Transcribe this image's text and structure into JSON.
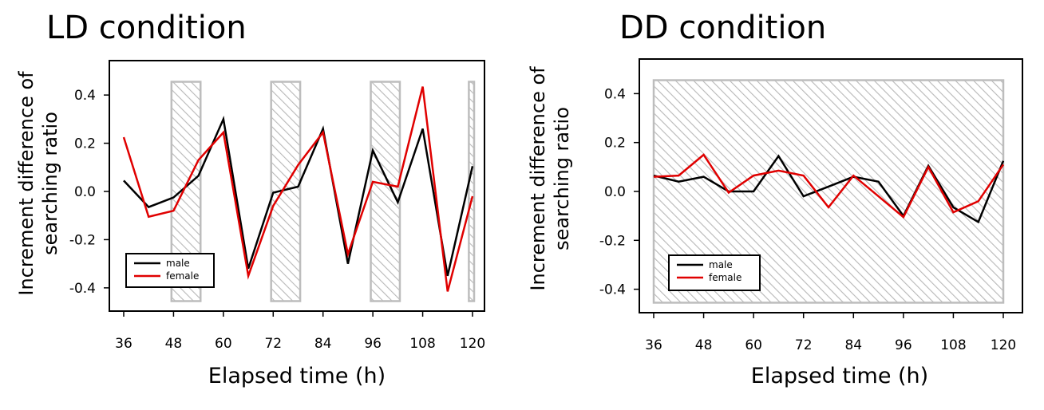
{
  "chart_data": [
    {
      "type": "line",
      "title": "LD condition",
      "xlabel": "Elapsed time (h)",
      "ylabel_lines": [
        "Increment difference of",
        "searching  ratio"
      ],
      "xlim": [
        36,
        120
      ],
      "ylim": [
        -0.46,
        0.46
      ],
      "x_ticks": [
        36,
        48,
        60,
        72,
        84,
        96,
        108,
        120
      ],
      "y_ticks": [
        -0.4,
        -0.2,
        0.0,
        0.2,
        0.4
      ],
      "y_tick_labels": [
        "-0.4",
        "-0.2",
        "0.0",
        "0.2",
        "0.4"
      ],
      "shaded_intervals": [
        [
          47.5,
          54.5
        ],
        [
          71.5,
          78.5
        ],
        [
          95.5,
          102.5
        ],
        [
          119.5,
          120
        ]
      ],
      "legend_position": "bottom-left",
      "grid": false,
      "x": [
        36,
        42,
        48,
        54,
        60,
        66,
        72,
        78,
        84,
        90,
        96,
        102,
        108,
        114,
        120
      ],
      "series": [
        {
          "name": "male",
          "color": "#000000",
          "values": [
            0.045,
            -0.065,
            -0.025,
            0.065,
            0.3,
            -0.32,
            -0.005,
            0.02,
            0.26,
            -0.3,
            0.17,
            -0.045,
            0.26,
            -0.35,
            0.105
          ]
        },
        {
          "name": "female",
          "color": "#e00000",
          "values": [
            0.225,
            -0.105,
            -0.08,
            0.13,
            0.245,
            -0.35,
            -0.06,
            0.11,
            0.245,
            -0.26,
            0.04,
            0.02,
            0.435,
            -0.415,
            -0.02
          ]
        }
      ]
    },
    {
      "type": "line",
      "title": "DD condition",
      "xlabel": "Elapsed time (h)",
      "ylabel_lines": [
        "Increment difference of",
        "searching  ratio"
      ],
      "xlim": [
        36,
        120
      ],
      "ylim": [
        -0.46,
        0.46
      ],
      "x_ticks": [
        36,
        48,
        60,
        72,
        84,
        96,
        108,
        120
      ],
      "y_ticks": [
        -0.4,
        -0.2,
        0.0,
        0.2,
        0.4
      ],
      "y_tick_labels": [
        "-0.4",
        "-0.2",
        "0.0",
        "0.2",
        "0.4"
      ],
      "shaded_intervals": [
        [
          36,
          120
        ]
      ],
      "legend_position": "bottom-left",
      "grid": false,
      "x": [
        36,
        42,
        48,
        54,
        60,
        66,
        72,
        78,
        84,
        90,
        96,
        102,
        108,
        114,
        120
      ],
      "series": [
        {
          "name": "male",
          "color": "#000000",
          "values": [
            0.065,
            0.04,
            0.06,
            0.0,
            0.0,
            0.145,
            -0.02,
            0.02,
            0.06,
            0.04,
            -0.1,
            0.105,
            -0.065,
            -0.125,
            0.125
          ]
        },
        {
          "name": "female",
          "color": "#e00000",
          "values": [
            0.06,
            0.065,
            0.15,
            -0.005,
            0.065,
            0.085,
            0.065,
            -0.065,
            0.065,
            -0.02,
            -0.105,
            0.1,
            -0.085,
            -0.04,
            0.11
          ]
        }
      ]
    }
  ]
}
